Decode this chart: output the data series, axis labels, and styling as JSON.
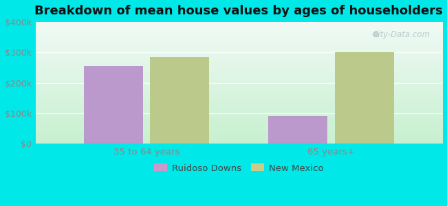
{
  "title": "Breakdown of mean house values by ages of householders",
  "categories": [
    "35 to 64 years",
    "65 years+"
  ],
  "series": {
    "Ruidoso Downs": [
      255000,
      90000
    ],
    "New Mexico": [
      285000,
      300000
    ]
  },
  "bar_colors": {
    "Ruidoso Downs": "#bb99cc",
    "New Mexico": "#bbc98a"
  },
  "legend_colors": {
    "Ruidoso Downs": "#cc99cc",
    "New Mexico": "#cccc88"
  },
  "ylim": [
    0,
    400000
  ],
  "yticks": [
    0,
    100000,
    200000,
    300000,
    400000
  ],
  "ytick_labels": [
    "$0",
    "$100k",
    "$200k",
    "$300k",
    "$400k"
  ],
  "background_color": "#00e8e8",
  "plot_bg_gradient_bottom": "#c8f0d0",
  "plot_bg_gradient_top": "#f0faf5",
  "bar_width": 0.32,
  "title_fontsize": 13,
  "watermark": "City-Data.com",
  "tick_color": "#888888",
  "label_fontsize": 9
}
